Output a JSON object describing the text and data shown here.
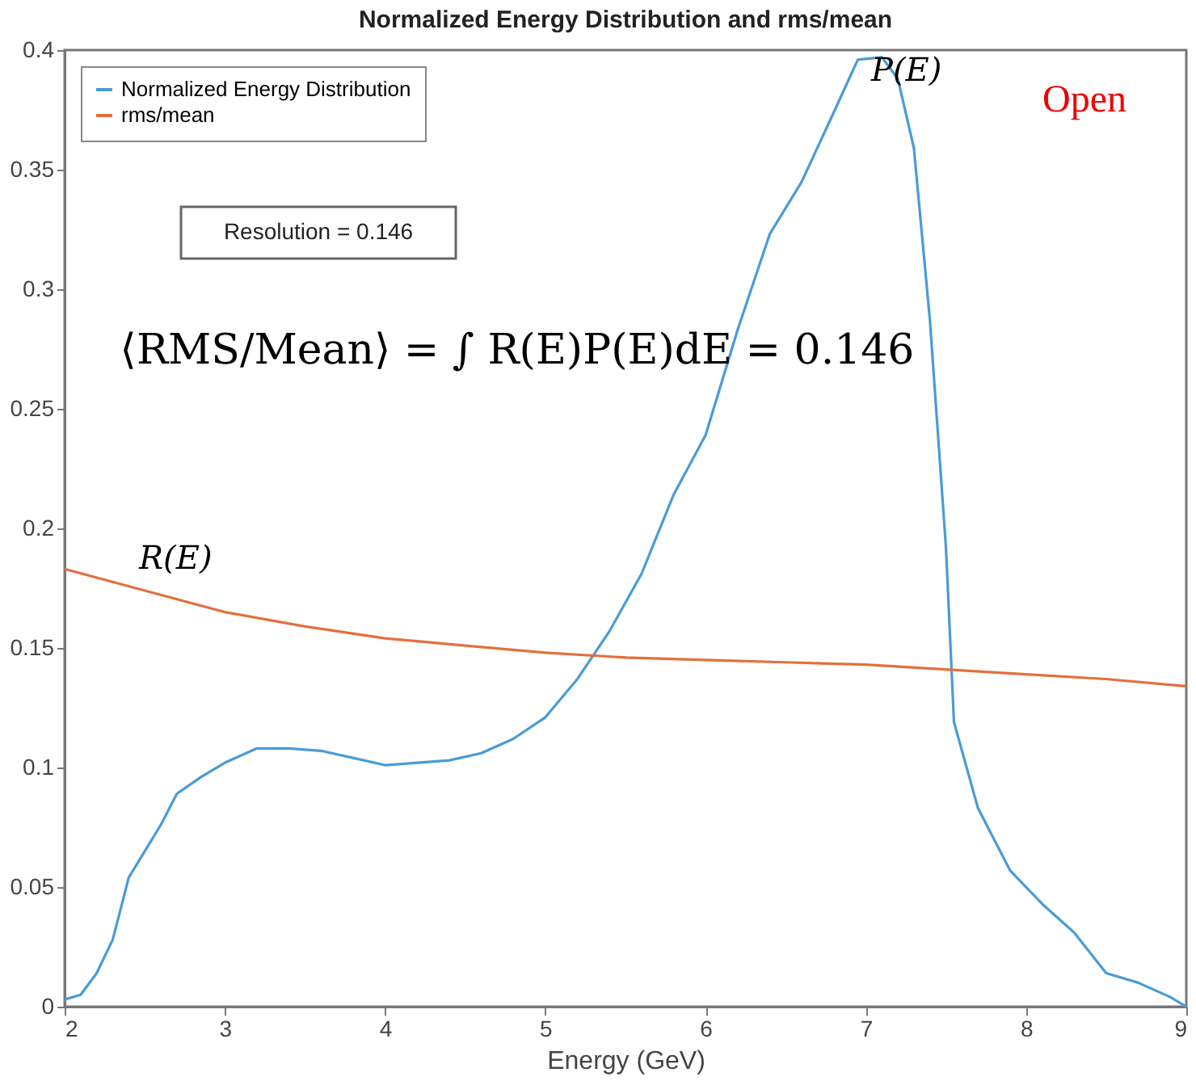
{
  "chart_data": {
    "type": "line",
    "title": "Normalized Energy Distribution and rms/mean",
    "xlabel": "Energy (GeV)",
    "xlim": [
      2,
      9
    ],
    "xticks": [
      2,
      3,
      4,
      5,
      6,
      7,
      8,
      9
    ],
    "ylim": [
      0,
      0.4
    ],
    "yticks": [
      0,
      0.05,
      0.1,
      0.15,
      0.2,
      0.25,
      0.3,
      0.35,
      0.4
    ],
    "grid": false,
    "legend": "top left",
    "line_style": "solid",
    "marker": "none",
    "series": [
      {
        "name": "Normalized Energy Distribution",
        "color": "#4a9bd6",
        "x": [
          2.0,
          2.1,
          2.2,
          2.3,
          2.4,
          2.5,
          2.6,
          2.7,
          2.85,
          3.0,
          3.2,
          3.4,
          3.6,
          3.8,
          4.0,
          4.2,
          4.4,
          4.6,
          4.8,
          5.0,
          5.2,
          5.4,
          5.6,
          5.8,
          6.0,
          6.2,
          6.4,
          6.6,
          6.8,
          6.95,
          7.1,
          7.2,
          7.3,
          7.4,
          7.5,
          7.55,
          7.7,
          7.9,
          8.1,
          8.3,
          8.5,
          8.7,
          8.9,
          9.0
        ],
        "values": [
          0.003,
          0.005,
          0.014,
          0.028,
          0.054,
          0.065,
          0.076,
          0.089,
          0.096,
          0.102,
          0.108,
          0.108,
          0.107,
          0.104,
          0.101,
          0.102,
          0.103,
          0.106,
          0.112,
          0.121,
          0.137,
          0.157,
          0.181,
          0.214,
          0.239,
          0.283,
          0.323,
          0.345,
          0.374,
          0.396,
          0.397,
          0.388,
          0.359,
          0.287,
          0.192,
          0.119,
          0.083,
          0.057,
          0.043,
          0.031,
          0.014,
          0.01,
          0.004,
          0.0
        ]
      },
      {
        "name": "rms/mean",
        "color": "#e2703e",
        "x": [
          2.0,
          2.5,
          3.0,
          3.5,
          4.0,
          4.5,
          5.0,
          5.5,
          6.0,
          6.5,
          7.0,
          7.5,
          8.0,
          8.5,
          9.0
        ],
        "values": [
          0.183,
          0.174,
          0.165,
          0.159,
          0.154,
          0.151,
          0.148,
          0.146,
          0.145,
          0.144,
          0.143,
          0.141,
          0.139,
          0.137,
          0.134
        ]
      }
    ],
    "annotations": [
      "P(E)",
      "R(E)",
      "Open",
      "Resolution = 0.146",
      "⟨RMS/Mean⟩ = ∫ R(E)P(E)dE = 0.146"
    ]
  }
}
